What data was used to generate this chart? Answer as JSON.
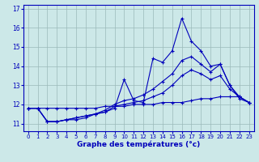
{
  "xlabel": "Graphe des températures (°c)",
  "background_color": "#cce8e8",
  "line_color": "#0000bb",
  "hours": [
    0,
    1,
    2,
    3,
    4,
    5,
    6,
    7,
    8,
    9,
    10,
    11,
    12,
    13,
    14,
    15,
    16,
    17,
    18,
    19,
    20,
    21,
    22,
    23
  ],
  "line_spike": [
    11.8,
    11.8,
    11.1,
    11.1,
    11.2,
    11.2,
    11.3,
    11.5,
    11.6,
    11.8,
    13.3,
    12.2,
    12.1,
    14.4,
    14.2,
    14.8,
    16.5,
    15.3,
    14.8,
    14.0,
    14.1,
    13.0,
    12.3,
    12.1
  ],
  "line_upper": [
    11.8,
    11.8,
    11.1,
    11.1,
    11.2,
    11.3,
    11.4,
    11.5,
    11.7,
    12.0,
    12.2,
    12.3,
    12.5,
    12.8,
    13.2,
    13.6,
    14.3,
    14.5,
    14.1,
    13.7,
    14.1,
    13.0,
    12.4,
    12.1
  ],
  "line_mid": [
    11.8,
    11.8,
    11.1,
    11.1,
    11.2,
    11.3,
    11.4,
    11.5,
    11.6,
    11.9,
    12.0,
    12.1,
    12.2,
    12.4,
    12.6,
    13.0,
    13.5,
    13.8,
    13.6,
    13.3,
    13.5,
    12.8,
    12.4,
    12.1
  ],
  "line_flat": [
    11.8,
    11.8,
    11.8,
    11.8,
    11.8,
    11.8,
    11.8,
    11.8,
    11.9,
    11.9,
    11.9,
    12.0,
    12.0,
    12.0,
    12.1,
    12.1,
    12.1,
    12.2,
    12.3,
    12.3,
    12.4,
    12.4,
    12.4,
    12.1
  ],
  "ylim_min": 10.6,
  "ylim_max": 17.2,
  "yticks": [
    11,
    12,
    13,
    14,
    15,
    16,
    17
  ],
  "grid_color": "#9bbaba"
}
